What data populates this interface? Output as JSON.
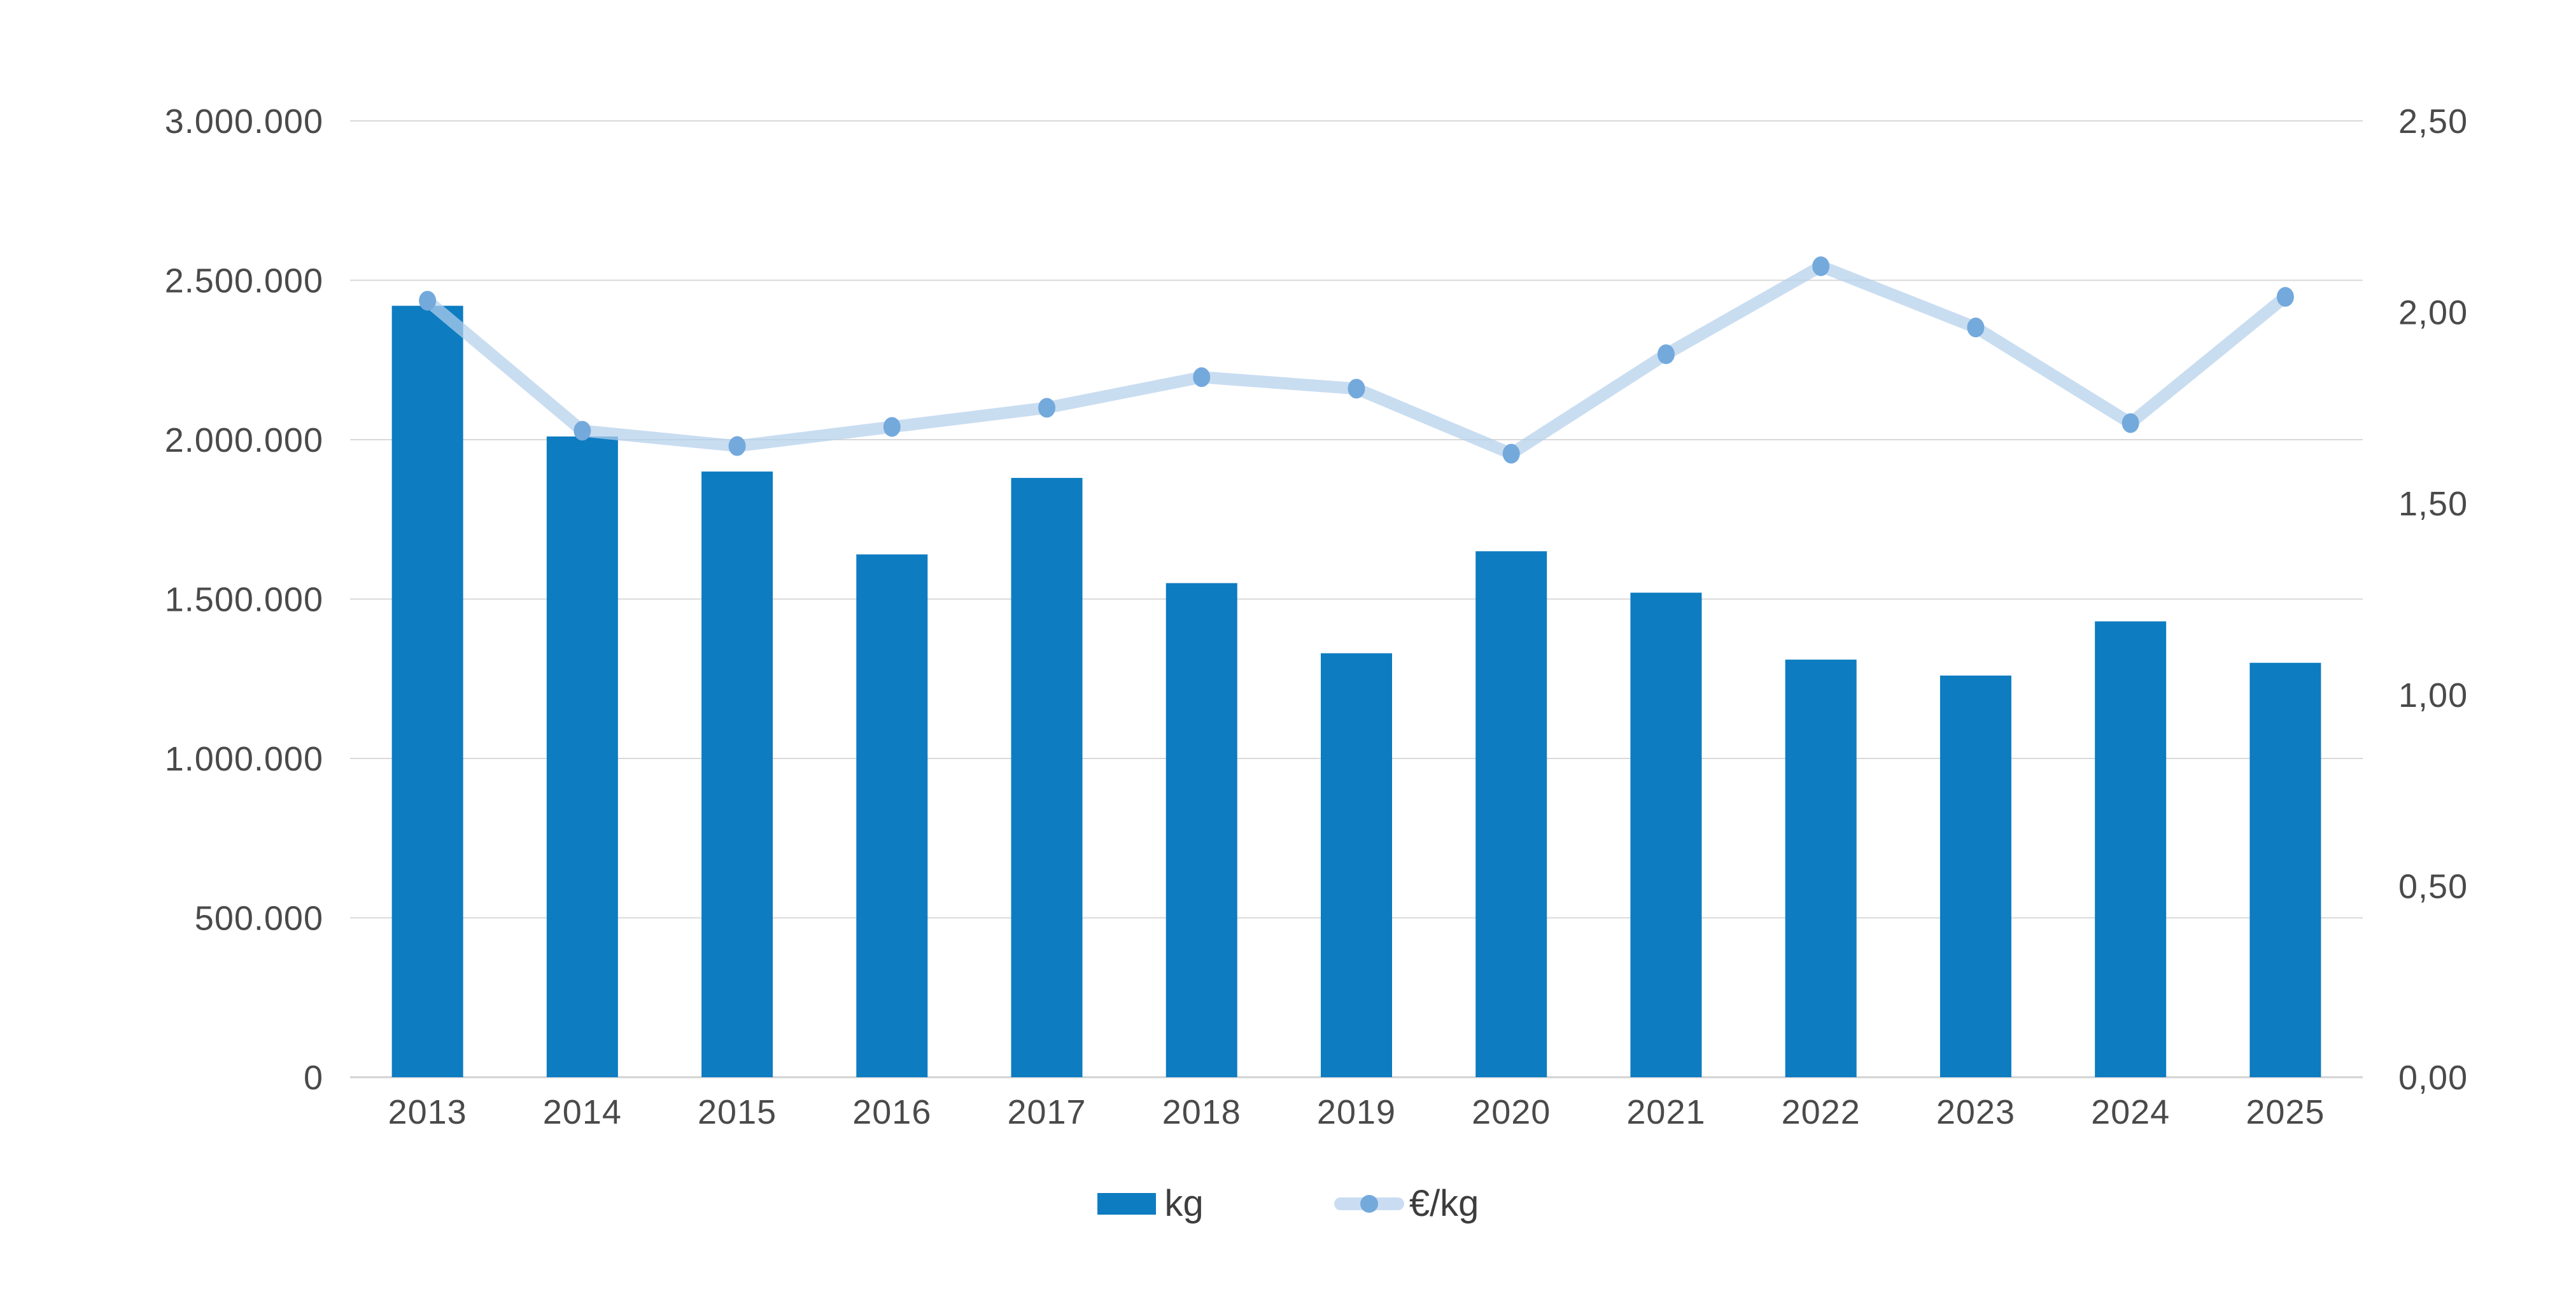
{
  "chart_data": {
    "type": "combo-bar-line",
    "title": "",
    "categories": [
      "2013",
      "2014",
      "2015",
      "2016",
      "2017",
      "2018",
      "2019",
      "2020",
      "2021",
      "2022",
      "2023",
      "2024",
      "2025"
    ],
    "series": [
      {
        "name": "kg",
        "type": "bar",
        "axis": "left",
        "values": [
          2420000,
          2010000,
          1900000,
          1640000,
          1880000,
          1550000,
          1330000,
          1650000,
          1520000,
          1310000,
          1260000,
          1430000,
          1300000
        ]
      },
      {
        "name": "€/kg",
        "type": "line",
        "axis": "right",
        "values": [
          2.03,
          1.69,
          1.65,
          1.7,
          1.75,
          1.83,
          1.8,
          1.63,
          1.89,
          2.12,
          1.96,
          1.71,
          2.04
        ]
      }
    ],
    "left_axis": {
      "min": 0,
      "max": 3000000,
      "step": 500000,
      "tick_labels": [
        "3.000.000",
        "2.500.000",
        "2.000.000",
        "1.500.000",
        "1.000.000",
        "500.000",
        "0"
      ]
    },
    "right_axis": {
      "min": 0,
      "max": 2.5,
      "step": 0.5,
      "tick_labels": [
        "2,50",
        "2,00",
        "1,50",
        "1,00",
        "0,50",
        "0,00"
      ]
    },
    "grid": true,
    "legend_position": "bottom"
  },
  "legend": {
    "bar_label": "kg",
    "line_label": "€/kg"
  },
  "colors": {
    "bar": "#0d7cc1",
    "line_stroke": "rgba(180,208,236,0.72)",
    "line_solid": "#c9dcf2",
    "marker": "#74a9dc",
    "grid": "#d9d9d9",
    "baseline": "#d2d2d2",
    "axis_text": "#4a4a4a",
    "background": "#ffffff"
  }
}
